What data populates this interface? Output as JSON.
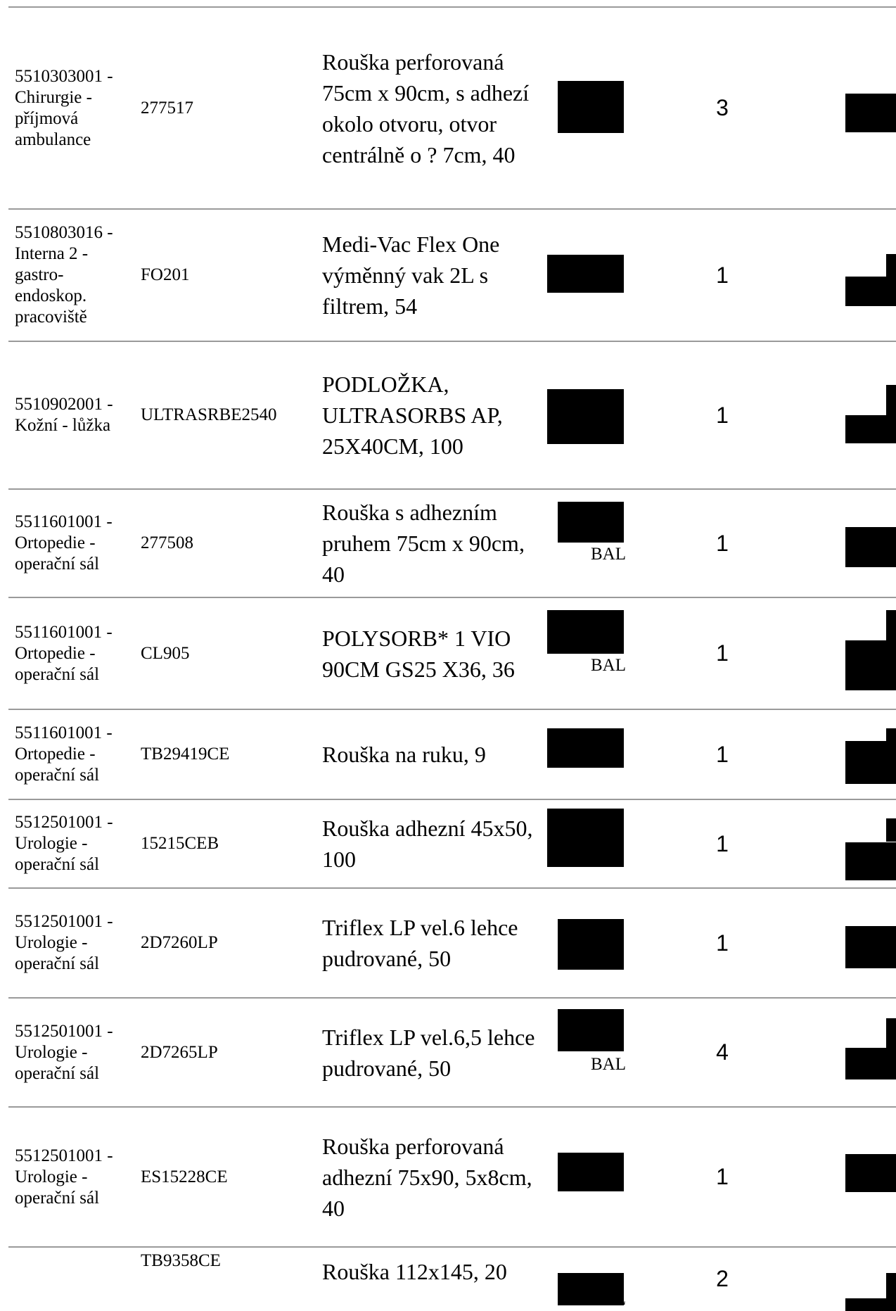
{
  "rows": [
    {
      "dept": "5510303001 - Chirurgie - příjmová ambulance",
      "code": "277517",
      "desc": "Rouška perforovaná 75cm x 90cm, s adhezí okolo otvoru, otvor centrálně o ? 7cm, 40",
      "unit": "",
      "qty": "3"
    },
    {
      "dept": "5510803016 - Interna 2 - gastro-endoskop. pracoviště",
      "code": "FO201",
      "desc": "Medi-Vac Flex One výměnný vak 2L s filtrem, 54",
      "unit": "",
      "qty": "1"
    },
    {
      "dept": "5510902001 - Kožní - lůžka",
      "code": "ULTRASRBE2540",
      "desc": "PODLOŽKA, ULTRASORBS AP, 25X40CM, 100",
      "unit": "",
      "qty": "1"
    },
    {
      "dept": "5511601001 - Ortopedie - operační sál",
      "code": "277508",
      "desc": "Rouška s adhezním pruhem 75cm x 90cm, 40",
      "unit": "BAL",
      "qty": "1"
    },
    {
      "dept": "5511601001 - Ortopedie - operační sál",
      "code": "CL905",
      "desc": "POLYSORB* 1 VIO 90CM GS25 X36, 36",
      "unit": "BAL",
      "qty": "1"
    },
    {
      "dept": "5511601001 - Ortopedie - operační sál",
      "code": "TB29419CE",
      "desc": "Rouška na ruku, 9",
      "unit": "",
      "qty": "1"
    },
    {
      "dept": "5512501001 - Urologie - operační sál",
      "code": "15215CEB",
      "desc": "Rouška adhezní 45x50, 100",
      "unit": "",
      "qty": "1"
    },
    {
      "dept": "5512501001 - Urologie - operační sál",
      "code": "2D7260LP",
      "desc": "Triflex LP vel.6 lehce pudrované, 50",
      "unit": "",
      "qty": "1"
    },
    {
      "dept": "5512501001 - Urologie - operační sál",
      "code": "2D7265LP",
      "desc": "Triflex LP vel.6,5 lehce pudrované, 50",
      "unit": "BAL",
      "qty": "4"
    },
    {
      "dept": "5512501001 - Urologie - operační sál",
      "code": "ES15228CE",
      "desc": "Rouška perforovaná adhezní 75x90, 5x8cm, 40",
      "unit": "",
      "qty": "1"
    },
    {
      "dept": "",
      "code": "TB9358CE",
      "desc": "Rouška 112x145, 20",
      "unit": "BAL",
      "qty": "2"
    }
  ]
}
